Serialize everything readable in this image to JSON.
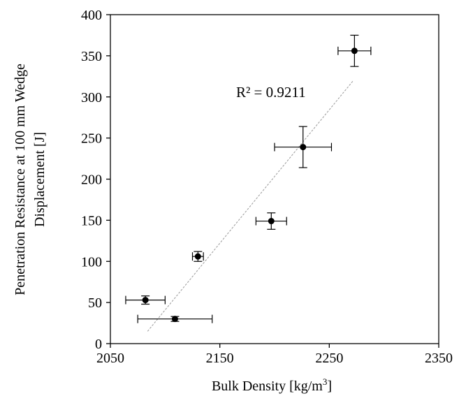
{
  "chart_data": {
    "type": "scatter",
    "xlabel": "Bulk Density [kg/m",
    "xlabel_sup": "3",
    "xlabel_end": "]",
    "ylabel_line1": "Penetration Resistance at 100 mm Wedge",
    "ylabel_line2": "Displacement [J]",
    "xlim": [
      2050,
      2350
    ],
    "ylim": [
      0,
      400
    ],
    "x_ticks": [
      2050,
      2150,
      2250,
      2350
    ],
    "y_ticks": [
      0,
      50,
      100,
      150,
      200,
      250,
      300,
      350,
      400
    ],
    "grid": false,
    "points": [
      {
        "x": 2082,
        "y": 53,
        "xerr": 18,
        "yerr": 5
      },
      {
        "x": 2109,
        "y": 30,
        "xerr": 34,
        "yerr": 3
      },
      {
        "x": 2130,
        "y": 106,
        "xerr": 5,
        "yerr": 6
      },
      {
        "x": 2197,
        "y": 149,
        "xerr": 14,
        "yerr": 10
      },
      {
        "x": 2226,
        "y": 239,
        "xerr": 26,
        "yerr": 25
      },
      {
        "x": 2273,
        "y": 356,
        "xerr": 15,
        "yerr": 19
      }
    ],
    "trendline": {
      "x": [
        2084,
        2272
      ],
      "y": [
        15,
        320
      ],
      "style": "dashed",
      "color": "#999999"
    },
    "annotation": "R² = 0.9211"
  }
}
